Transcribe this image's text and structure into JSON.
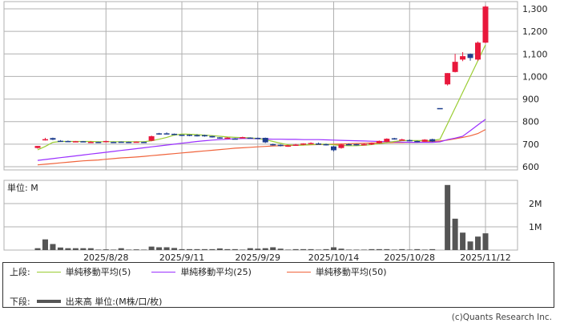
{
  "chart_data": {
    "type": "candlestick",
    "price_axis": {
      "ticks": [
        600,
        700,
        800,
        900,
        1000,
        1100,
        1200,
        1300
      ],
      "tick_labels": [
        "600",
        "700",
        "800",
        "900",
        "1,000",
        "1,100",
        "1,200",
        "1,300"
      ],
      "ylim": [
        600,
        1300
      ],
      "position": "right"
    },
    "volume_axis": {
      "unit_label": "単位: M",
      "ticks": [
        1,
        2
      ],
      "tick_labels": [
        "1M",
        "2M"
      ]
    },
    "x_tick_labels": [
      "2025/8/28",
      "2025/9/11",
      "2025/9/29",
      "2025/10/14",
      "2025/10/28",
      "2025/11/12"
    ],
    "x_tick_index": [
      9,
      19,
      29,
      39,
      49,
      59
    ],
    "grid": true,
    "colors": {
      "up": "#e8183c",
      "down": "#1f3f8f",
      "ma5": "#9acd32",
      "ma25": "#9b30ff",
      "ma50": "#f0643c",
      "volume": "#555555",
      "grid": "#b0b0b0"
    },
    "ohlc": [
      [
        683,
        692,
        680,
        692
      ],
      [
        718,
        728,
        716,
        722
      ],
      [
        727,
        729,
        718,
        720
      ],
      [
        715,
        718,
        710,
        714
      ],
      [
        714,
        716,
        710,
        713
      ],
      [
        712,
        714,
        709,
        713
      ],
      [
        713,
        714,
        709,
        711
      ],
      [
        708,
        713,
        706,
        710
      ],
      [
        710,
        711,
        707,
        709
      ],
      [
        712,
        715,
        708,
        714
      ],
      [
        710,
        711,
        709,
        710
      ],
      [
        711,
        712,
        709,
        710
      ],
      [
        710,
        711,
        708,
        709
      ],
      [
        709,
        712,
        708,
        711
      ],
      [
        710,
        711,
        709,
        710
      ],
      [
        715,
        738,
        713,
        735
      ],
      [
        748,
        750,
        742,
        748
      ],
      [
        748,
        752,
        744,
        748
      ],
      [
        746,
        747,
        740,
        742
      ],
      [
        742,
        743,
        736,
        738
      ],
      [
        742,
        743,
        735,
        741
      ],
      [
        740,
        744,
        734,
        740
      ],
      [
        740,
        742,
        733,
        739
      ],
      [
        736,
        737,
        729,
        730
      ],
      [
        730,
        731,
        724,
        726
      ],
      [
        726,
        731,
        724,
        729
      ],
      [
        725,
        727,
        723,
        725
      ],
      [
        728,
        733,
        726,
        731
      ],
      [
        729,
        730,
        725,
        726
      ],
      [
        728,
        729,
        726,
        727
      ],
      [
        728,
        729,
        705,
        708
      ],
      [
        700,
        702,
        694,
        698
      ],
      [
        697,
        699,
        690,
        692
      ],
      [
        692,
        697,
        688,
        694
      ],
      [
        697,
        701,
        693,
        698
      ],
      [
        699,
        704,
        696,
        703
      ],
      [
        701,
        708,
        699,
        705
      ],
      [
        703,
        707,
        700,
        703
      ],
      [
        700,
        702,
        694,
        696
      ],
      [
        690,
        692,
        668,
        673
      ],
      [
        683,
        702,
        680,
        698
      ],
      [
        700,
        703,
        697,
        700
      ],
      [
        700,
        701,
        694,
        696
      ],
      [
        699,
        703,
        697,
        700
      ],
      [
        700,
        707,
        696,
        704
      ],
      [
        704,
        716,
        702,
        714
      ],
      [
        710,
        726,
        709,
        724
      ],
      [
        726,
        728,
        720,
        726
      ],
      [
        720,
        724,
        719,
        721
      ],
      [
        718,
        721,
        716,
        718
      ],
      [
        714,
        716,
        708,
        712
      ],
      [
        712,
        722,
        711,
        720
      ],
      [
        722,
        724,
        710,
        712
      ],
      [
        860,
        860,
        860,
        860
      ],
      [
        965,
        1015,
        960,
        1015
      ],
      [
        1020,
        1100,
        1018,
        1065
      ],
      [
        1075,
        1108,
        1068,
        1090
      ],
      [
        1100,
        1102,
        1070,
        1082
      ],
      [
        1075,
        1155,
        1070,
        1150
      ],
      [
        1150,
        1315,
        1148,
        1310
      ]
    ],
    "volume": [
      0.08,
      0.46,
      0.26,
      0.11,
      0.08,
      0.08,
      0.08,
      0.08,
      0.02,
      0.03,
      0.02,
      0.08,
      0.02,
      0.03,
      0.02,
      0.15,
      0.12,
      0.12,
      0.09,
      0.04,
      0.04,
      0.04,
      0.04,
      0.04,
      0.07,
      0.04,
      0.04,
      0.02,
      0.08,
      0.06,
      0.08,
      0.12,
      0.06,
      0.02,
      0.04,
      0.04,
      0.04,
      0.02,
      0.04,
      0.12,
      0.06,
      0.02,
      0.02,
      0.02,
      0.04,
      0.04,
      0.04,
      0.02,
      0.04,
      0.02,
      0.04,
      0.02,
      0.04,
      0,
      2.8,
      1.35,
      0.75,
      0.37,
      0.58,
      0.72
    ],
    "series": [
      {
        "name": "単純移動平均(5)",
        "values": [
          675,
          690,
          708,
          712,
          712,
          712,
          712,
          712,
          711,
          711,
          711,
          711,
          711,
          711,
          711,
          715,
          722,
          730,
          740,
          745,
          744,
          742,
          740,
          738,
          735,
          732,
          730,
          729,
          728,
          725,
          720,
          712,
          704,
          697,
          695,
          696,
          698,
          699,
          700,
          697,
          694,
          693,
          693,
          695,
          698,
          702,
          706,
          712,
          716,
          716,
          716,
          716,
          716,
          722,
          790,
          860,
          930,
          1000,
          1070,
          1140
        ]
      },
      {
        "name": "単純移動平均(25)",
        "values": [
          628,
          632,
          636,
          640,
          644,
          648,
          652,
          656,
          660,
          664,
          668,
          672,
          676,
          680,
          684,
          688,
          692,
          696,
          700,
          704,
          708,
          712,
          715,
          718,
          720,
          722,
          724,
          725,
          725,
          724,
          723,
          722,
          722,
          721,
          721,
          720,
          720,
          720,
          719,
          718,
          717,
          716,
          715,
          714,
          713,
          712,
          711,
          710,
          709,
          708,
          708,
          708,
          708,
          710,
          720,
          727,
          735,
          760,
          785,
          810
        ]
      },
      {
        "name": "単純移動平均(50)",
        "values": [
          608,
          611,
          614,
          617,
          620,
          623,
          626,
          628,
          630,
          633,
          636,
          639,
          641,
          643,
          646,
          649,
          652,
          655,
          658,
          661,
          664,
          667,
          670,
          673,
          676,
          679,
          682,
          684,
          686,
          688,
          690,
          692,
          693,
          694,
          695,
          696,
          697,
          698,
          699,
          700,
          701,
          702,
          703,
          704,
          705,
          705,
          706,
          707,
          707,
          708,
          708,
          710,
          712,
          714,
          718,
          724,
          730,
          737,
          747,
          765
        ]
      }
    ]
  },
  "legend": {
    "upper_label": "上段:",
    "ma5_label": "単純移動平均(5)",
    "ma25_label": "単純移動平均(25)",
    "ma50_label": "単純移動平均(50)",
    "lower_label": "下段:",
    "volume_label": "出来高 単位:(M株/口/枚)"
  },
  "copyright": "(c)Quants Research Inc."
}
